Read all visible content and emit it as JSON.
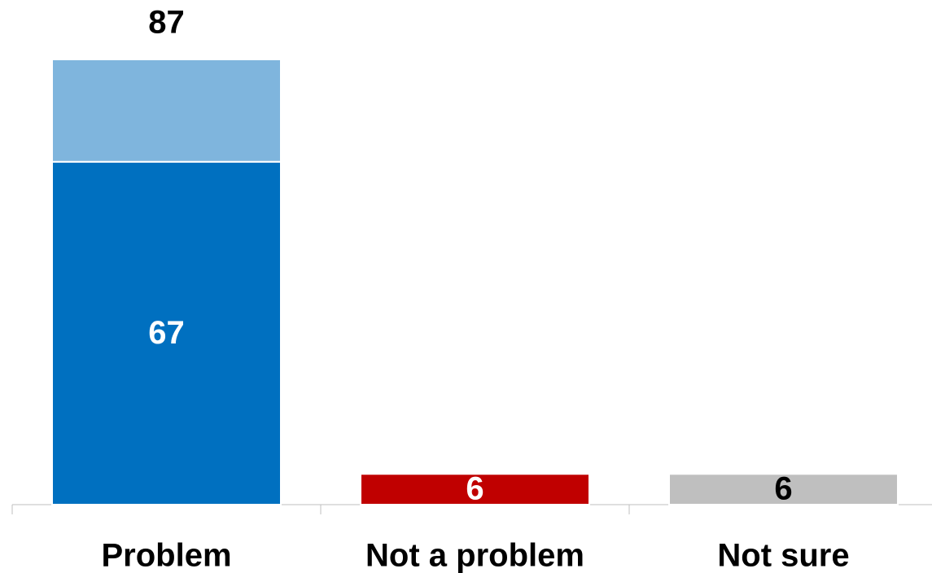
{
  "chart_data": {
    "type": "stacked_bar",
    "categories": [
      "Problem",
      "Not a problem",
      "Not sure"
    ],
    "series": [
      {
        "colors": [
          "#0070c0",
          "#c00000",
          "#bfbfbf"
        ],
        "label_colors": [
          "#ffffff",
          "#ffffff",
          "#000000"
        ],
        "values": [
          67,
          6,
          6
        ]
      },
      {
        "color": "#7fb5dd",
        "values": [
          20,
          null,
          null
        ]
      }
    ],
    "totals": [
      87,
      null,
      null
    ],
    "ylim": [
      0,
      87
    ]
  }
}
